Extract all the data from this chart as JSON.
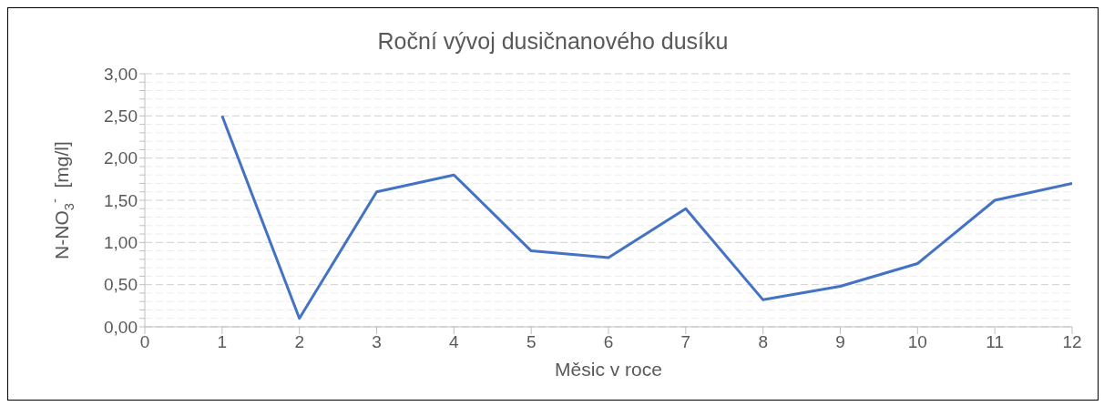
{
  "chart_data": {
    "type": "line",
    "title": "Roční vývoj dusičnanového dusíku",
    "xlabel": "Měsic v roce",
    "ylabel": "N-NO$_{3}$$^{-}$  [mg/l]",
    "x": [
      1,
      2,
      3,
      4,
      5,
      6,
      7,
      8,
      9,
      10,
      11,
      12
    ],
    "series": [
      {
        "color": "#4472c4",
        "values": [
          2.5,
          0.1,
          1.6,
          1.8,
          0.9,
          0.82,
          1.4,
          0.32,
          0.48,
          0.75,
          1.5,
          1.7
        ]
      }
    ],
    "xlim": [
      0,
      12
    ],
    "xticks": [
      0,
      1,
      2,
      3,
      4,
      5,
      6,
      7,
      8,
      9,
      10,
      11,
      12
    ],
    "ylim": [
      0,
      3
    ],
    "yticks": [
      {
        "value": 0,
        "label": "0,00"
      },
      {
        "value": 0.1,
        "label": null
      },
      {
        "value": 0.2,
        "label": null
      },
      {
        "value": 0.3,
        "label": null
      },
      {
        "value": 0.4,
        "label": null
      },
      {
        "value": 0.5,
        "label": "0,50"
      },
      {
        "value": 0.6,
        "label": null
      },
      {
        "value": 0.7,
        "label": null
      },
      {
        "value": 0.8,
        "label": null
      },
      {
        "value": 0.9,
        "label": null
      },
      {
        "value": 1,
        "label": "1,00"
      },
      {
        "value": 1.1,
        "label": null
      },
      {
        "value": 1.2,
        "label": null
      },
      {
        "value": 1.3,
        "label": null
      },
      {
        "value": 1.4,
        "label": null
      },
      {
        "value": 1.5,
        "label": "1,50"
      },
      {
        "value": 1.6,
        "label": null
      },
      {
        "value": 1.7,
        "label": null
      },
      {
        "value": 1.8,
        "label": null
      },
      {
        "value": 1.9,
        "label": null
      },
      {
        "value": 2,
        "label": "2,00"
      },
      {
        "value": 2.1,
        "label": null
      },
      {
        "value": 2.2,
        "label": null
      },
      {
        "value": 2.3,
        "label": null
      },
      {
        "value": 2.4,
        "label": null
      },
      {
        "value": 2.5,
        "label": "2,50"
      },
      {
        "value": 2.6,
        "label": null
      },
      {
        "value": 2.7,
        "label": null
      },
      {
        "value": 2.8,
        "label": null
      },
      {
        "value": 2.9,
        "label": null
      },
      {
        "value": 3,
        "label": "3,00"
      }
    ],
    "grid": "y",
    "marker": "none",
    "line_style": "solid"
  }
}
